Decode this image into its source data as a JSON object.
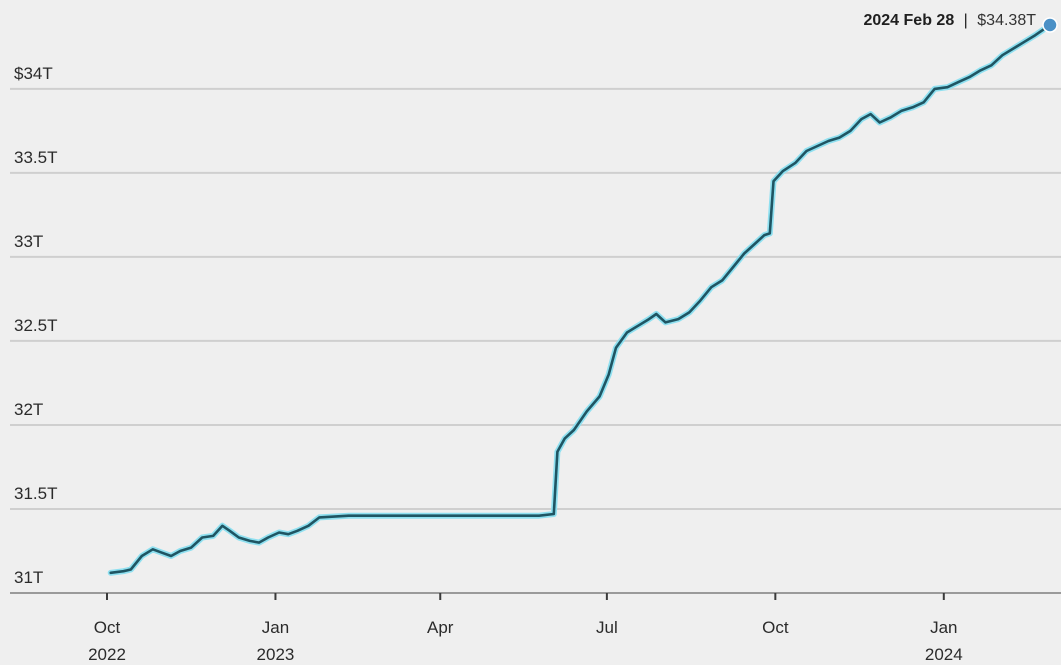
{
  "chart_data": {
    "type": "line",
    "title": "",
    "xlabel": "",
    "ylabel": "",
    "ylim": [
      31,
      34.38
    ],
    "grid": "horizontal",
    "legend": "none",
    "y_ticks": [
      {
        "value": 31,
        "label": "31T"
      },
      {
        "value": 31.5,
        "label": "31.5T"
      },
      {
        "value": 32,
        "label": "32T"
      },
      {
        "value": 32.5,
        "label": "32.5T"
      },
      {
        "value": 33,
        "label": "33T"
      },
      {
        "value": 33.5,
        "label": "33.5T"
      },
      {
        "value": 34,
        "label": "$34T"
      }
    ],
    "x_ticks": [
      {
        "date": "2022-10-01",
        "line1": "Oct",
        "line2": "2022"
      },
      {
        "date": "2023-01-01",
        "line1": "Jan",
        "line2": "2023"
      },
      {
        "date": "2023-04-01",
        "line1": "Apr",
        "line2": ""
      },
      {
        "date": "2023-07-01",
        "line1": "Jul",
        "line2": ""
      },
      {
        "date": "2023-10-01",
        "line1": "Oct",
        "line2": ""
      },
      {
        "date": "2024-01-01",
        "line1": "Jan",
        "line2": "2024"
      }
    ],
    "series": [
      {
        "color": "#1f5563",
        "highlight_color": "#8fe0f0",
        "points": [
          [
            "2022-10-03",
            31.12
          ],
          [
            "2022-10-10",
            31.13
          ],
          [
            "2022-10-14",
            31.14
          ],
          [
            "2022-10-20",
            31.22
          ],
          [
            "2022-10-26",
            31.26
          ],
          [
            "2022-10-31",
            31.24
          ],
          [
            "2022-11-05",
            31.22
          ],
          [
            "2022-11-10",
            31.25
          ],
          [
            "2022-11-16",
            31.27
          ],
          [
            "2022-11-22",
            31.33
          ],
          [
            "2022-11-28",
            31.34
          ],
          [
            "2022-12-03",
            31.4
          ],
          [
            "2022-12-07",
            31.37
          ],
          [
            "2022-12-12",
            31.33
          ],
          [
            "2022-12-18",
            31.31
          ],
          [
            "2022-12-23",
            31.3
          ],
          [
            "2022-12-28",
            31.33
          ],
          [
            "2023-01-03",
            31.36
          ],
          [
            "2023-01-08",
            31.35
          ],
          [
            "2023-01-13",
            31.37
          ],
          [
            "2023-01-19",
            31.4
          ],
          [
            "2023-01-25",
            31.45
          ],
          [
            "2023-02-10",
            31.46
          ],
          [
            "2023-03-15",
            31.46
          ],
          [
            "2023-04-20",
            31.46
          ],
          [
            "2023-05-25",
            31.46
          ],
          [
            "2023-06-02",
            31.47
          ],
          [
            "2023-06-04",
            31.84
          ],
          [
            "2023-06-08",
            31.92
          ],
          [
            "2023-06-13",
            31.97
          ],
          [
            "2023-06-20",
            32.08
          ],
          [
            "2023-06-27",
            32.17
          ],
          [
            "2023-07-02",
            32.3
          ],
          [
            "2023-07-06",
            32.46
          ],
          [
            "2023-07-12",
            32.55
          ],
          [
            "2023-07-18",
            32.59
          ],
          [
            "2023-07-24",
            32.63
          ],
          [
            "2023-07-28",
            32.66
          ],
          [
            "2023-08-02",
            32.61
          ],
          [
            "2023-08-09",
            32.63
          ],
          [
            "2023-08-15",
            32.67
          ],
          [
            "2023-08-21",
            32.74
          ],
          [
            "2023-08-27",
            32.82
          ],
          [
            "2023-09-02",
            32.86
          ],
          [
            "2023-09-08",
            32.94
          ],
          [
            "2023-09-14",
            33.02
          ],
          [
            "2023-09-20",
            33.08
          ],
          [
            "2023-09-25",
            33.13
          ],
          [
            "2023-09-28",
            33.14
          ],
          [
            "2023-09-30",
            33.45
          ],
          [
            "2023-10-05",
            33.51
          ],
          [
            "2023-10-12",
            33.56
          ],
          [
            "2023-10-18",
            33.63
          ],
          [
            "2023-10-24",
            33.66
          ],
          [
            "2023-10-30",
            33.69
          ],
          [
            "2023-11-05",
            33.71
          ],
          [
            "2023-11-11",
            33.75
          ],
          [
            "2023-11-17",
            33.82
          ],
          [
            "2023-11-22",
            33.85
          ],
          [
            "2023-11-27",
            33.8
          ],
          [
            "2023-12-03",
            33.83
          ],
          [
            "2023-12-09",
            33.87
          ],
          [
            "2023-12-15",
            33.89
          ],
          [
            "2023-12-21",
            33.92
          ],
          [
            "2023-12-27",
            34.0
          ],
          [
            "2024-01-03",
            34.01
          ],
          [
            "2024-01-09",
            34.04
          ],
          [
            "2024-01-15",
            34.07
          ],
          [
            "2024-01-21",
            34.11
          ],
          [
            "2024-01-27",
            34.14
          ],
          [
            "2024-02-02",
            34.2
          ],
          [
            "2024-02-08",
            34.24
          ],
          [
            "2024-02-14",
            34.28
          ],
          [
            "2024-02-20",
            34.32
          ],
          [
            "2024-02-28",
            34.38
          ]
        ]
      }
    ],
    "annotation": {
      "date_label": "2024 Feb 28",
      "separator": "|",
      "value_label": "$34.38T",
      "marker_color": "#4a90c6"
    }
  }
}
